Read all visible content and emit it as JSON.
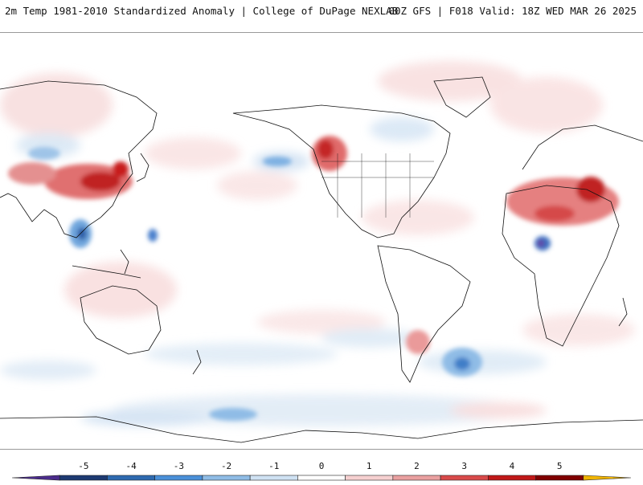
{
  "header": {
    "left_title": "2m Temp 1981-2010 Standardized Anomaly | College of DuPage NEXLAB",
    "right_title": "00Z GFS | F018 Valid: 18Z WED MAR 26 2025"
  },
  "map": {
    "anomalies": [
      {
        "region": "east-asia",
        "sign": "warm",
        "strength": "strong"
      },
      {
        "region": "western-north-america",
        "sign": "warm",
        "strength": "strong"
      },
      {
        "region": "north-africa-sahara",
        "sign": "warm",
        "strength": "strong"
      },
      {
        "region": "indochina",
        "sign": "cold",
        "strength": "strong"
      },
      {
        "region": "gulf-of-guinea",
        "sign": "cold",
        "strength": "strong"
      },
      {
        "region": "south-atlantic",
        "sign": "cold",
        "strength": "moderate"
      },
      {
        "region": "patagonia",
        "sign": "warm",
        "strength": "moderate"
      }
    ]
  },
  "legend": {
    "ticks": [
      "-5",
      "-4",
      "-3",
      "-2",
      "-1",
      "0",
      "1",
      "2",
      "3",
      "4",
      "5"
    ],
    "colors": [
      "#4b2c8c",
      "#1d3a72",
      "#2e6ab0",
      "#4a90d9",
      "#8fbce6",
      "#cfe2f3",
      "#ffffff",
      "#f6d0d0",
      "#eaa0a0",
      "#d94a4a",
      "#c01818",
      "#800000",
      "#f0b400"
    ]
  }
}
